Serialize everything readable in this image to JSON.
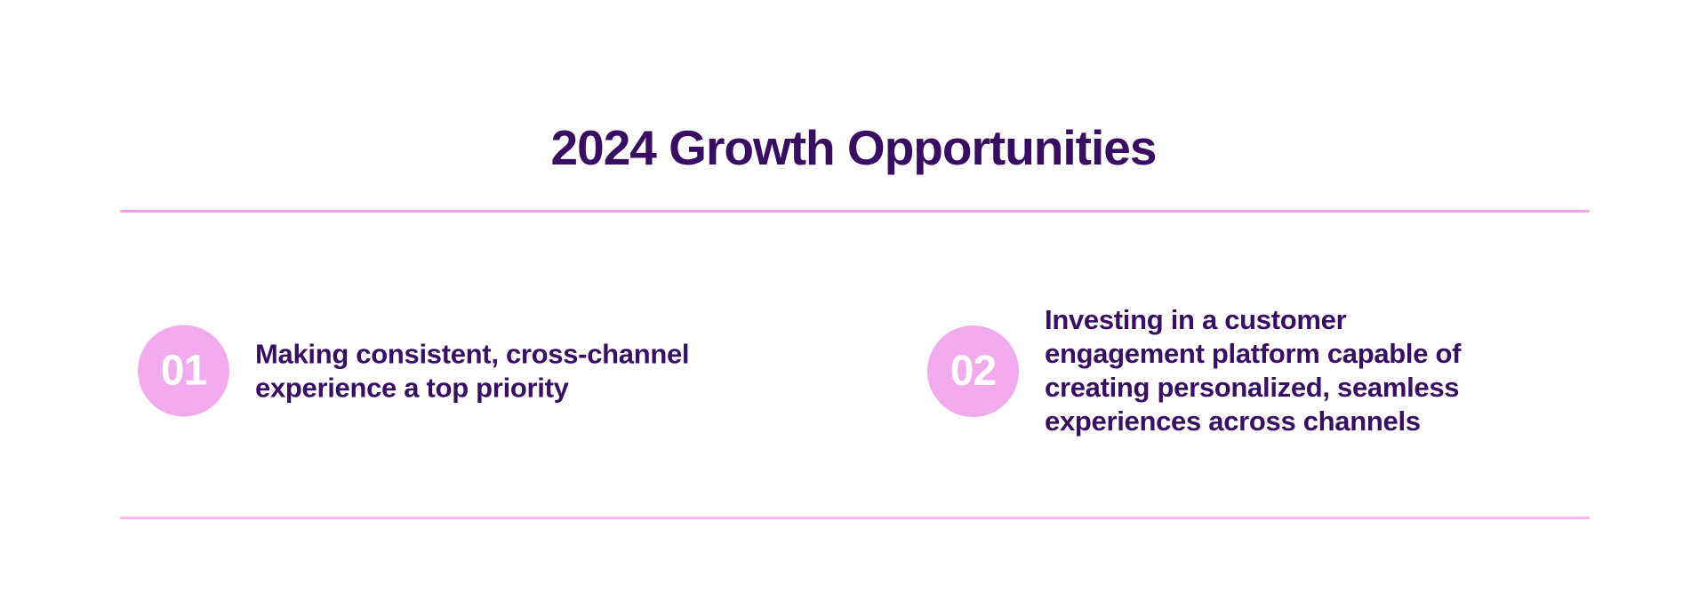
{
  "page": {
    "background_color": "#ffffff",
    "text_color": "#390f63"
  },
  "header": {
    "title": "2024 Growth Opportunities",
    "title_color": "#390d62"
  },
  "dividers": {
    "top_color": "#f9a0ec",
    "bottom_color": "#f7b7ee"
  },
  "items": [
    {
      "number": "01",
      "badge_color": "#f1aaee",
      "number_color": "#ffffff",
      "lines": [
        "Making consistent, cross-channel",
        "experience a top priority"
      ]
    },
    {
      "number": "02",
      "badge_color": "#f1aaee",
      "number_color": "#ffffff",
      "lines": [
        "Investing in a customer",
        "engagement platform capable of",
        "creating personalized, seamless",
        "experiences across channels"
      ]
    }
  ]
}
